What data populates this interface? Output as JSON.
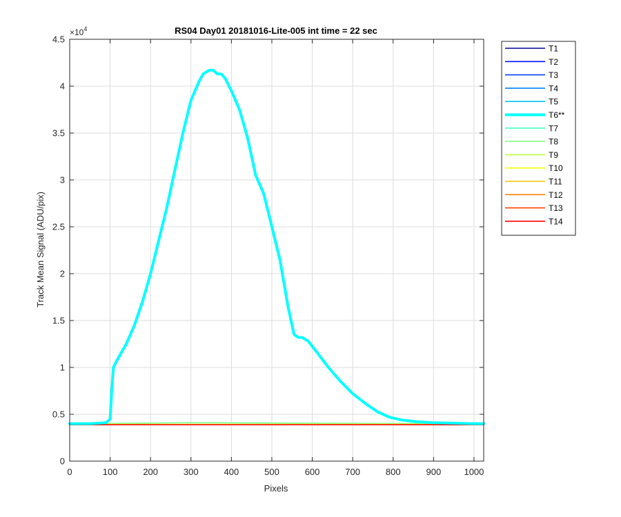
{
  "chart_data": {
    "type": "line",
    "title": "RS04 Day01 20181016-Lite-005 int time = 22 sec",
    "xlabel": "Pixels",
    "ylabel": "Track Mean Signal (ADU/pix)",
    "y_exponent_label": "×10",
    "y_exponent_power": "4",
    "y_multiplier": 10000,
    "xlim": [
      0,
      1024
    ],
    "ylim": [
      0,
      4.5
    ],
    "xticks": [
      0,
      100,
      200,
      300,
      400,
      500,
      600,
      700,
      800,
      900,
      1000
    ],
    "xtick_labels": [
      "0",
      "100",
      "200",
      "300",
      "400",
      "500",
      "600",
      "700",
      "800",
      "900",
      "1000"
    ],
    "yticks": [
      0,
      0.5,
      1,
      1.5,
      2,
      2.5,
      3,
      3.5,
      4,
      4.5
    ],
    "ytick_labels": [
      "0",
      "0.5",
      "1",
      "1.5",
      "2",
      "2.5",
      "3",
      "3.5",
      "4",
      "4.5"
    ],
    "grid": true,
    "legend_position": "outside-top-right",
    "series": [
      {
        "name": "T1",
        "color": "#00008f",
        "width": "normal",
        "x": [
          0,
          1024
        ],
        "y": [
          0.39,
          0.39
        ]
      },
      {
        "name": "T2",
        "color": "#0010ff",
        "width": "normal",
        "x": [
          0,
          1024
        ],
        "y": [
          0.39,
          0.39
        ]
      },
      {
        "name": "T3",
        "color": "#0040ff",
        "width": "normal",
        "x": [
          0,
          1024
        ],
        "y": [
          0.39,
          0.39
        ]
      },
      {
        "name": "T4",
        "color": "#0080ff",
        "width": "normal",
        "x": [
          0,
          1024
        ],
        "y": [
          0.39,
          0.39
        ]
      },
      {
        "name": "T5",
        "color": "#00bfff",
        "width": "normal",
        "x": [
          0,
          1024
        ],
        "y": [
          0.392,
          0.392
        ]
      },
      {
        "name": "T6**",
        "color": "#00ffff",
        "width": "thick",
        "x": [
          0,
          50,
          90,
          100,
          104,
          108,
          120,
          140,
          160,
          180,
          200,
          220,
          240,
          260,
          280,
          300,
          320,
          330,
          345,
          355,
          365,
          375,
          385,
          400,
          420,
          440,
          460,
          480,
          500,
          520,
          540,
          555,
          565,
          575,
          590,
          610,
          640,
          670,
          700,
          730,
          760,
          790,
          820,
          860,
          900,
          950,
          1000,
          1024
        ],
        "y": [
          0.4,
          0.4,
          0.41,
          0.45,
          0.75,
          1.0,
          1.1,
          1.25,
          1.45,
          1.7,
          2.0,
          2.35,
          2.7,
          3.1,
          3.5,
          3.85,
          4.05,
          4.13,
          4.17,
          4.17,
          4.13,
          4.13,
          4.08,
          3.95,
          3.75,
          3.45,
          3.05,
          2.85,
          2.5,
          2.15,
          1.65,
          1.35,
          1.32,
          1.32,
          1.28,
          1.17,
          1.0,
          0.85,
          0.72,
          0.62,
          0.53,
          0.47,
          0.44,
          0.42,
          0.41,
          0.405,
          0.4,
          0.4
        ]
      },
      {
        "name": "T7",
        "color": "#40ffbf",
        "width": "normal",
        "x": [
          0,
          300,
          1024
        ],
        "y": [
          0.4,
          0.41,
          0.4
        ]
      },
      {
        "name": "T8",
        "color": "#80ff80",
        "width": "normal",
        "x": [
          0,
          300,
          1024
        ],
        "y": [
          0.4,
          0.41,
          0.4
        ]
      },
      {
        "name": "T9",
        "color": "#bfff40",
        "width": "normal",
        "x": [
          0,
          1024
        ],
        "y": [
          0.395,
          0.395
        ]
      },
      {
        "name": "T10",
        "color": "#ffff00",
        "width": "normal",
        "x": [
          0,
          1024
        ],
        "y": [
          0.392,
          0.392
        ]
      },
      {
        "name": "T11",
        "color": "#ffbf00",
        "width": "normal",
        "x": [
          0,
          1024
        ],
        "y": [
          0.39,
          0.39
        ]
      },
      {
        "name": "T12",
        "color": "#ff8000",
        "width": "normal",
        "x": [
          0,
          1024
        ],
        "y": [
          0.39,
          0.39
        ]
      },
      {
        "name": "T13",
        "color": "#ff4000",
        "width": "normal",
        "x": [
          0,
          1024
        ],
        "y": [
          0.39,
          0.39
        ]
      },
      {
        "name": "T14",
        "color": "#ff0000",
        "width": "normal",
        "x": [
          0,
          1024
        ],
        "y": [
          0.388,
          0.388
        ]
      }
    ]
  }
}
